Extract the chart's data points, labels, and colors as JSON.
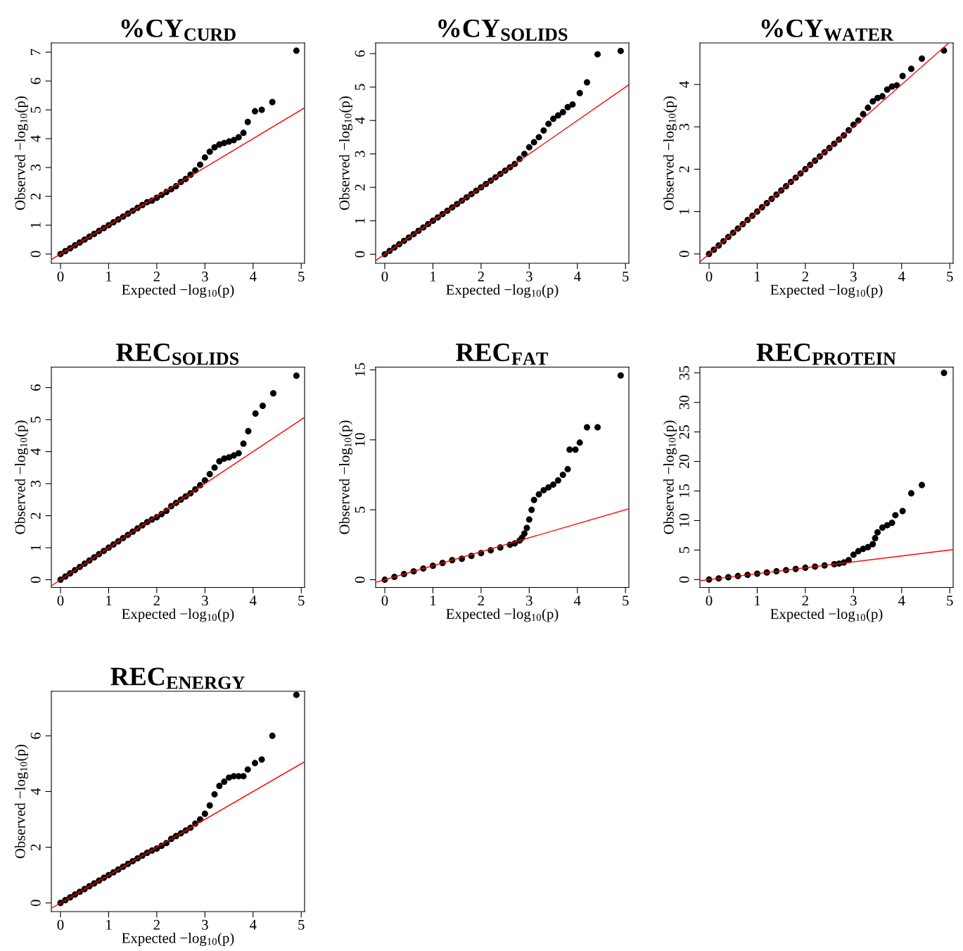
{
  "chart_data": [
    {
      "type": "scatter",
      "title": "%CY$_{CURD}$",
      "xlabel": "Expected −log$_{10}$(p)",
      "ylabel": "Observed −log$_{10}$(p)",
      "xlim": [
        -0.19,
        5.07
      ],
      "ylim": [
        -0.32,
        7.32
      ],
      "xticks": [
        0,
        1,
        2,
        3,
        4,
        5
      ],
      "yticks": [
        0,
        1,
        2,
        3,
        4,
        5,
        6,
        7
      ],
      "grid": false,
      "series": [
        {
          "color": "#000000",
          "marker": "circle",
          "x": [
            0,
            0.1,
            0.2,
            0.3,
            0.4,
            0.5,
            0.6,
            0.7,
            0.8,
            0.9,
            1.0,
            1.1,
            1.2,
            1.3,
            1.4,
            1.5,
            1.6,
            1.7,
            1.8,
            1.9,
            2.0,
            2.1,
            2.2,
            2.3,
            2.4,
            2.5,
            2.6,
            2.7,
            2.8,
            2.9,
            3.0,
            3.1,
            3.2,
            3.3,
            3.4,
            3.5,
            3.6,
            3.7,
            3.8,
            3.89,
            4.04,
            4.18,
            4.4,
            4.9
          ],
          "values": [
            0,
            0.1,
            0.2,
            0.3,
            0.4,
            0.5,
            0.6,
            0.7,
            0.8,
            0.9,
            1.0,
            1.1,
            1.2,
            1.3,
            1.4,
            1.5,
            1.6,
            1.7,
            1.8,
            1.85,
            1.95,
            2.05,
            2.15,
            2.25,
            2.35,
            2.5,
            2.6,
            2.75,
            2.9,
            3.1,
            3.35,
            3.55,
            3.7,
            3.8,
            3.85,
            3.9,
            3.95,
            4.05,
            4.2,
            4.58,
            4.95,
            5.0,
            5.27,
            7.05
          ]
        },
        {
          "type": "line",
          "color": "#ff0000",
          "marker": "none",
          "x": [
            -0.19,
            5.07
          ],
          "values": [
            -0.19,
            5.07
          ]
        }
      ]
    },
    {
      "type": "scatter",
      "title": "%CY$_{SOLIDS}$",
      "xlabel": "Expected −log$_{10}$(p)",
      "ylabel": "Observed −log$_{10}$(p)",
      "xlim": [
        -0.19,
        5.07
      ],
      "ylim": [
        -0.27,
        6.32
      ],
      "xticks": [
        0,
        1,
        2,
        3,
        4,
        5
      ],
      "yticks": [
        0,
        1,
        2,
        3,
        4,
        5,
        6
      ],
      "grid": false,
      "series": [
        {
          "color": "#000000",
          "marker": "circle",
          "x": [
            0,
            0.1,
            0.2,
            0.3,
            0.4,
            0.5,
            0.6,
            0.7,
            0.8,
            0.9,
            1.0,
            1.1,
            1.2,
            1.3,
            1.4,
            1.5,
            1.6,
            1.7,
            1.8,
            1.9,
            2.0,
            2.1,
            2.2,
            2.3,
            2.4,
            2.5,
            2.6,
            2.7,
            2.8,
            2.9,
            3.0,
            3.1,
            3.2,
            3.3,
            3.4,
            3.5,
            3.6,
            3.7,
            3.8,
            3.9,
            4.05,
            4.2,
            4.42,
            4.9
          ],
          "values": [
            0,
            0.1,
            0.2,
            0.3,
            0.4,
            0.5,
            0.6,
            0.7,
            0.8,
            0.9,
            1.0,
            1.1,
            1.2,
            1.3,
            1.4,
            1.5,
            1.6,
            1.7,
            1.8,
            1.9,
            2.0,
            2.1,
            2.2,
            2.3,
            2.4,
            2.5,
            2.6,
            2.7,
            2.85,
            3.0,
            3.2,
            3.35,
            3.5,
            3.7,
            3.9,
            4.05,
            4.15,
            4.25,
            4.4,
            4.48,
            4.82,
            5.14,
            5.98,
            6.08
          ]
        },
        {
          "type": "line",
          "color": "#ff0000",
          "marker": "none",
          "x": [
            -0.19,
            5.07
          ],
          "values": [
            -0.19,
            5.07
          ]
        }
      ]
    },
    {
      "type": "scatter",
      "title": "%CY$_{WATER}$",
      "xlabel": "Expected −log$_{10}$(p)",
      "ylabel": "Observed −log$_{10}$(p)",
      "xlim": [
        -0.19,
        5.07
      ],
      "ylim": [
        -0.22,
        4.98
      ],
      "xticks": [
        0,
        1,
        2,
        3,
        4,
        5
      ],
      "yticks": [
        0,
        1,
        2,
        3,
        4
      ],
      "grid": false,
      "series": [
        {
          "color": "#000000",
          "marker": "circle",
          "x": [
            0,
            0.1,
            0.2,
            0.3,
            0.4,
            0.5,
            0.6,
            0.7,
            0.8,
            0.9,
            1.0,
            1.1,
            1.2,
            1.3,
            1.4,
            1.5,
            1.6,
            1.7,
            1.8,
            1.9,
            2.0,
            2.1,
            2.2,
            2.3,
            2.4,
            2.5,
            2.6,
            2.7,
            2.8,
            2.9,
            3.0,
            3.1,
            3.2,
            3.3,
            3.4,
            3.5,
            3.6,
            3.7,
            3.8,
            3.9,
            4.02,
            4.2,
            4.42,
            4.88
          ],
          "values": [
            0,
            0.1,
            0.2,
            0.3,
            0.4,
            0.5,
            0.6,
            0.7,
            0.8,
            0.9,
            1.0,
            1.1,
            1.2,
            1.3,
            1.4,
            1.5,
            1.6,
            1.7,
            1.8,
            1.9,
            2.0,
            2.1,
            2.2,
            2.3,
            2.4,
            2.5,
            2.6,
            2.7,
            2.8,
            2.92,
            3.05,
            3.15,
            3.3,
            3.45,
            3.6,
            3.68,
            3.72,
            3.88,
            3.95,
            3.98,
            4.2,
            4.37,
            4.61,
            4.8
          ]
        },
        {
          "type": "line",
          "color": "#ff0000",
          "marker": "none",
          "x": [
            -0.19,
            4.98
          ],
          "values": [
            -0.19,
            4.98
          ]
        }
      ]
    },
    {
      "type": "scatter",
      "title": "REC$_{SOLIDS}$",
      "xlabel": "Expected −log$_{10}$(p)",
      "ylabel": "Observed −log$_{10}$(p)",
      "xlim": [
        -0.19,
        5.07
      ],
      "ylim": [
        -0.24,
        6.64
      ],
      "xticks": [
        0,
        1,
        2,
        3,
        4,
        5
      ],
      "yticks": [
        0,
        1,
        2,
        3,
        4,
        5,
        6
      ],
      "grid": false,
      "series": [
        {
          "color": "#000000",
          "marker": "circle",
          "x": [
            0,
            0.1,
            0.2,
            0.3,
            0.4,
            0.5,
            0.6,
            0.7,
            0.8,
            0.9,
            1.0,
            1.1,
            1.2,
            1.3,
            1.4,
            1.5,
            1.6,
            1.7,
            1.8,
            1.9,
            2.0,
            2.1,
            2.2,
            2.3,
            2.4,
            2.5,
            2.6,
            2.7,
            2.8,
            2.9,
            3.0,
            3.1,
            3.2,
            3.3,
            3.4,
            3.5,
            3.6,
            3.7,
            3.8,
            3.9,
            4.05,
            4.2,
            4.42,
            4.9
          ],
          "values": [
            0,
            0.1,
            0.2,
            0.3,
            0.4,
            0.5,
            0.6,
            0.7,
            0.8,
            0.9,
            1.0,
            1.1,
            1.2,
            1.3,
            1.4,
            1.5,
            1.6,
            1.7,
            1.8,
            1.88,
            1.95,
            2.05,
            2.15,
            2.3,
            2.4,
            2.5,
            2.6,
            2.7,
            2.82,
            2.95,
            3.1,
            3.3,
            3.5,
            3.7,
            3.78,
            3.82,
            3.88,
            3.95,
            4.25,
            4.64,
            5.19,
            5.43,
            5.82,
            6.37
          ]
        },
        {
          "type": "line",
          "color": "#ff0000",
          "marker": "none",
          "x": [
            -0.19,
            5.07
          ],
          "values": [
            -0.19,
            5.07
          ]
        }
      ]
    },
    {
      "type": "scatter",
      "title": "REC$_{FAT}$",
      "xlabel": "Expected −log$_{10}$(p)",
      "ylabel": "Observed −log$_{10}$(p)",
      "xlim": [
        -0.19,
        5.07
      ],
      "ylim": [
        -0.55,
        15.2
      ],
      "xticks": [
        0,
        1,
        2,
        3,
        4,
        5
      ],
      "yticks": [
        0,
        5,
        10,
        15
      ],
      "grid": false,
      "series": [
        {
          "color": "#000000",
          "marker": "circle",
          "x": [
            0,
            0.2,
            0.4,
            0.6,
            0.8,
            1.0,
            1.2,
            1.4,
            1.6,
            1.8,
            2.0,
            2.2,
            2.4,
            2.6,
            2.7,
            2.8,
            2.85,
            2.9,
            2.95,
            3.0,
            3.05,
            3.1,
            3.2,
            3.3,
            3.4,
            3.5,
            3.6,
            3.7,
            3.8,
            3.84,
            3.96,
            4.05,
            4.2,
            4.42,
            4.9
          ],
          "values": [
            0,
            0.2,
            0.4,
            0.6,
            0.8,
            1.0,
            1.2,
            1.4,
            1.5,
            1.7,
            1.9,
            2.1,
            2.3,
            2.5,
            2.6,
            2.8,
            3.0,
            3.3,
            3.7,
            4.3,
            5.0,
            5.7,
            6.1,
            6.4,
            6.6,
            6.8,
            7.1,
            7.5,
            7.9,
            9.3,
            9.3,
            9.8,
            10.9,
            10.9,
            14.6
          ]
        },
        {
          "type": "line",
          "color": "#ff0000",
          "marker": "none",
          "x": [
            -0.19,
            5.07
          ],
          "values": [
            -0.19,
            5.07
          ]
        }
      ]
    },
    {
      "type": "scatter",
      "title": "REC$_{PROTEIN}$",
      "xlabel": "Expected −log$_{10}$(p)",
      "ylabel": "Observed −log$_{10}$(p)",
      "xlim": [
        -0.19,
        5.07
      ],
      "ylim": [
        -1.33,
        35.98
      ],
      "xticks": [
        0,
        1,
        2,
        3,
        4,
        5
      ],
      "yticks": [
        0,
        5,
        10,
        15,
        20,
        25,
        30,
        35
      ],
      "grid": false,
      "series": [
        {
          "color": "#000000",
          "marker": "circle",
          "x": [
            0,
            0.2,
            0.4,
            0.6,
            0.8,
            1.0,
            1.2,
            1.4,
            1.6,
            1.8,
            2.0,
            2.2,
            2.4,
            2.6,
            2.7,
            2.8,
            2.9,
            3.0,
            3.1,
            3.2,
            3.3,
            3.4,
            3.45,
            3.5,
            3.6,
            3.7,
            3.8,
            3.87,
            4.02,
            4.2,
            4.42,
            4.88
          ],
          "values": [
            0,
            0.2,
            0.4,
            0.6,
            0.8,
            1.0,
            1.2,
            1.4,
            1.6,
            1.8,
            2.0,
            2.2,
            2.4,
            2.6,
            2.7,
            2.9,
            3.3,
            4.2,
            4.8,
            5.2,
            5.5,
            6.0,
            7.0,
            8.0,
            8.8,
            9.2,
            9.6,
            10.9,
            11.6,
            14.6,
            16.0,
            35.0
          ]
        },
        {
          "type": "line",
          "color": "#ff0000",
          "marker": "none",
          "x": [
            -0.19,
            5.07
          ],
          "values": [
            -0.19,
            5.07
          ]
        }
      ]
    },
    {
      "type": "scatter",
      "title": "REC$_{ENERGY}$",
      "xlabel": "Expected −log$_{10}$(p)",
      "ylabel": "Observed −log$_{10}$(p)",
      "xlim": [
        -0.19,
        5.07
      ],
      "ylim": [
        -0.31,
        7.6
      ],
      "xticks": [
        0,
        1,
        2,
        3,
        4,
        5
      ],
      "yticks": [
        0,
        2,
        4,
        6
      ],
      "grid": false,
      "series": [
        {
          "color": "#000000",
          "marker": "circle",
          "x": [
            0,
            0.1,
            0.2,
            0.3,
            0.4,
            0.5,
            0.6,
            0.7,
            0.8,
            0.9,
            1.0,
            1.1,
            1.2,
            1.3,
            1.4,
            1.5,
            1.6,
            1.7,
            1.8,
            1.9,
            2.0,
            2.1,
            2.2,
            2.3,
            2.4,
            2.5,
            2.6,
            2.7,
            2.8,
            2.9,
            3.0,
            3.1,
            3.2,
            3.3,
            3.4,
            3.5,
            3.6,
            3.7,
            3.8,
            3.89,
            4.04,
            4.18,
            4.4,
            4.9
          ],
          "values": [
            0,
            0.1,
            0.2,
            0.3,
            0.4,
            0.5,
            0.6,
            0.7,
            0.8,
            0.9,
            1.0,
            1.1,
            1.2,
            1.3,
            1.4,
            1.5,
            1.6,
            1.7,
            1.8,
            1.88,
            1.95,
            2.05,
            2.15,
            2.3,
            2.4,
            2.5,
            2.6,
            2.7,
            2.85,
            3.0,
            3.2,
            3.5,
            3.9,
            4.2,
            4.35,
            4.5,
            4.55,
            4.55,
            4.55,
            4.79,
            5.02,
            5.15,
            6.0,
            7.47
          ]
        },
        {
          "type": "line",
          "color": "#ff0000",
          "marker": "none",
          "x": [
            -0.19,
            5.07
          ],
          "values": [
            -0.19,
            5.07
          ]
        }
      ]
    }
  ]
}
